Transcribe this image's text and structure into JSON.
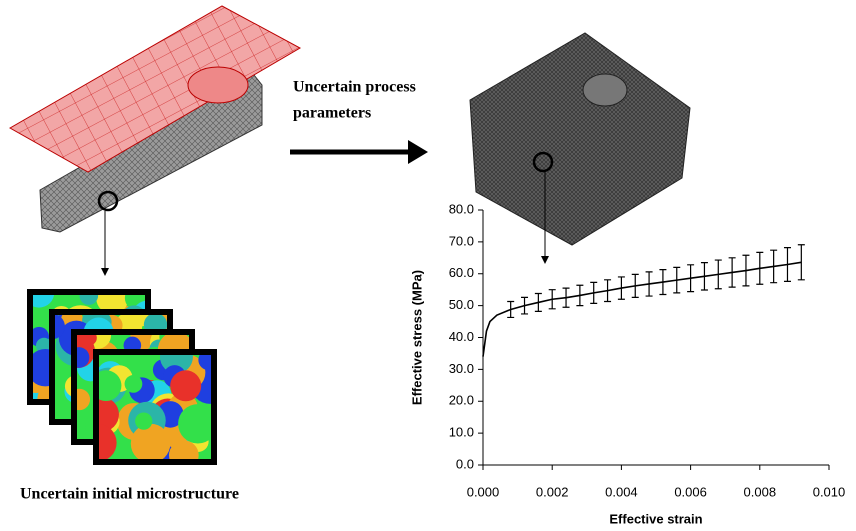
{
  "diagram": {
    "process_label": [
      "Uncertain process",
      "parameters"
    ],
    "micro_label": "Uncertain initial microstructure"
  },
  "chart_data": {
    "type": "line",
    "x": [
      0,
      0.0001,
      0.0002,
      0.0004,
      0.0008,
      0.0012,
      0.0016,
      0.002,
      0.0024,
      0.0028,
      0.0032,
      0.0036,
      0.004,
      0.0044,
      0.0048,
      0.0052,
      0.0056,
      0.006,
      0.0064,
      0.0068,
      0.0072,
      0.0076,
      0.008,
      0.0084,
      0.0088,
      0.0092
    ],
    "series": [
      {
        "color": "#000000",
        "values": [
          34,
          42,
          45,
          47,
          48.8,
          50,
          51,
          52,
          52.5,
          53.2,
          54,
          54.7,
          55.5,
          56.2,
          56.8,
          57.4,
          58,
          58.6,
          59.2,
          59.8,
          60.4,
          61,
          61.7,
          62.3,
          62.9,
          63.6
        ],
        "errors": [
          null,
          null,
          null,
          null,
          2.5,
          2.6,
          2.8,
          3,
          3,
          3.2,
          3.3,
          3.4,
          3.5,
          3.6,
          3.8,
          3.9,
          4,
          4.2,
          4.3,
          4.5,
          4.6,
          4.8,
          5,
          5.1,
          5.3,
          5.5
        ]
      }
    ],
    "xlabel": "Effective strain",
    "ylabel": "Effective stress (MPa)",
    "xlim": [
      0,
      0.01
    ],
    "ylim": [
      0,
      80
    ],
    "xticks": [
      {
        "value": 0,
        "label": "0.000"
      },
      {
        "value": 0.002,
        "label": "0.002"
      },
      {
        "value": 0.004,
        "label": "0.004"
      },
      {
        "value": 0.006,
        "label": "0.006"
      },
      {
        "value": 0.008,
        "label": "0.008"
      },
      {
        "value": 0.01,
        "label": "0.010"
      }
    ],
    "yticks": [
      {
        "value": 0,
        "label": "0.0"
      },
      {
        "value": 10,
        "label": "10.0"
      },
      {
        "value": 20,
        "label": "20.0"
      },
      {
        "value": 30,
        "label": "30.0"
      },
      {
        "value": 40,
        "label": "40.0"
      },
      {
        "value": 50,
        "label": "50.0"
      },
      {
        "value": 60,
        "label": "60.0"
      },
      {
        "value": 70,
        "label": "70.0"
      },
      {
        "value": 80,
        "label": "80.0"
      }
    ]
  }
}
